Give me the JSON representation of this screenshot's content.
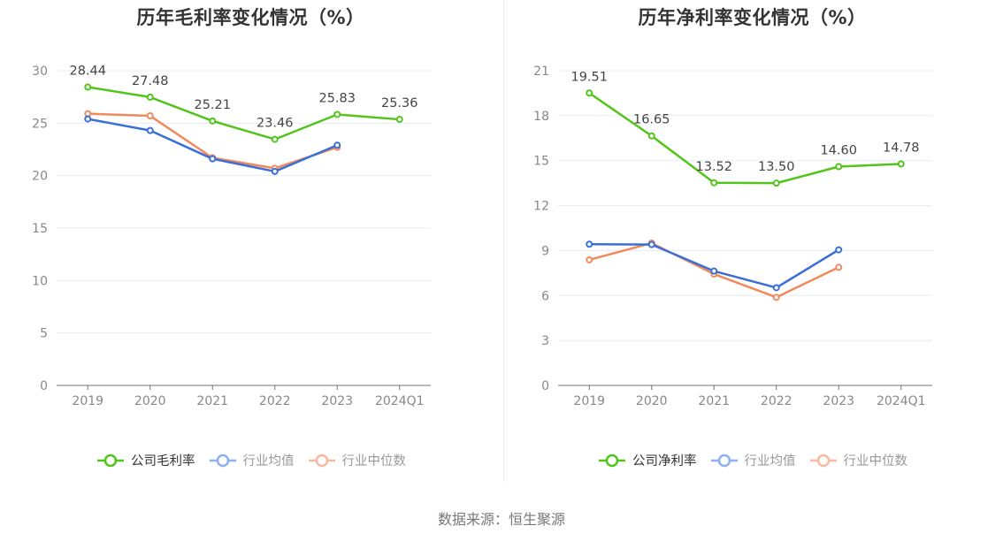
{
  "source_text": "数据来源：恒生聚源",
  "colors": {
    "company": "#52c41a",
    "industry_avg": "#3a6fd8",
    "industry_median": "#f08a5d",
    "legend_avg": "#8fb0f0",
    "legend_median": "#f8b9a0",
    "grid": "#e6ebf5",
    "axis": "#6e7079"
  },
  "chart_data": [
    {
      "type": "line",
      "title": "历年毛利率变化情况（%）",
      "xlabel": "",
      "ylabel": "",
      "categories": [
        "2019",
        "2020",
        "2021",
        "2022",
        "2023",
        "2024Q1"
      ],
      "ylim": [
        0,
        30
      ],
      "yticks": [
        "0",
        "5",
        "10",
        "15",
        "20",
        "25",
        "30"
      ],
      "grid": true,
      "legend_position": "bottom",
      "series": [
        {
          "name": "公司毛利率",
          "key": "company",
          "values": [
            28.44,
            27.48,
            25.21,
            23.46,
            25.83,
            25.36
          ],
          "labels": [
            "28.44",
            "27.48",
            "25.21",
            "23.46",
            "25.83",
            "25.36"
          ]
        },
        {
          "name": "行业均值",
          "key": "industry_avg",
          "values": [
            25.4,
            24.3,
            21.6,
            20.4,
            22.9,
            null
          ]
        },
        {
          "name": "行业中位数",
          "key": "industry_median",
          "values": [
            25.9,
            25.7,
            21.7,
            20.7,
            22.7,
            null
          ]
        }
      ]
    },
    {
      "type": "line",
      "title": "历年净利率变化情况（%）",
      "xlabel": "",
      "ylabel": "",
      "categories": [
        "2019",
        "2020",
        "2021",
        "2022",
        "2023",
        "2024Q1"
      ],
      "ylim": [
        0,
        21
      ],
      "yticks": [
        "0",
        "3",
        "6",
        "9",
        "12",
        "15",
        "18",
        "21"
      ],
      "grid": true,
      "legend_position": "bottom",
      "series": [
        {
          "name": "公司净利率",
          "key": "company",
          "values": [
            19.51,
            16.65,
            13.52,
            13.5,
            14.6,
            14.78
          ],
          "labels": [
            "19.51",
            "16.65",
            "13.52",
            "13.50",
            "14.60",
            "14.78"
          ]
        },
        {
          "name": "行业均值",
          "key": "industry_avg",
          "values": [
            9.42,
            9.4,
            7.63,
            6.52,
            9.05,
            null
          ]
        },
        {
          "name": "行业中位数",
          "key": "industry_median",
          "values": [
            8.38,
            9.5,
            7.43,
            5.88,
            7.88,
            null
          ]
        }
      ]
    }
  ]
}
